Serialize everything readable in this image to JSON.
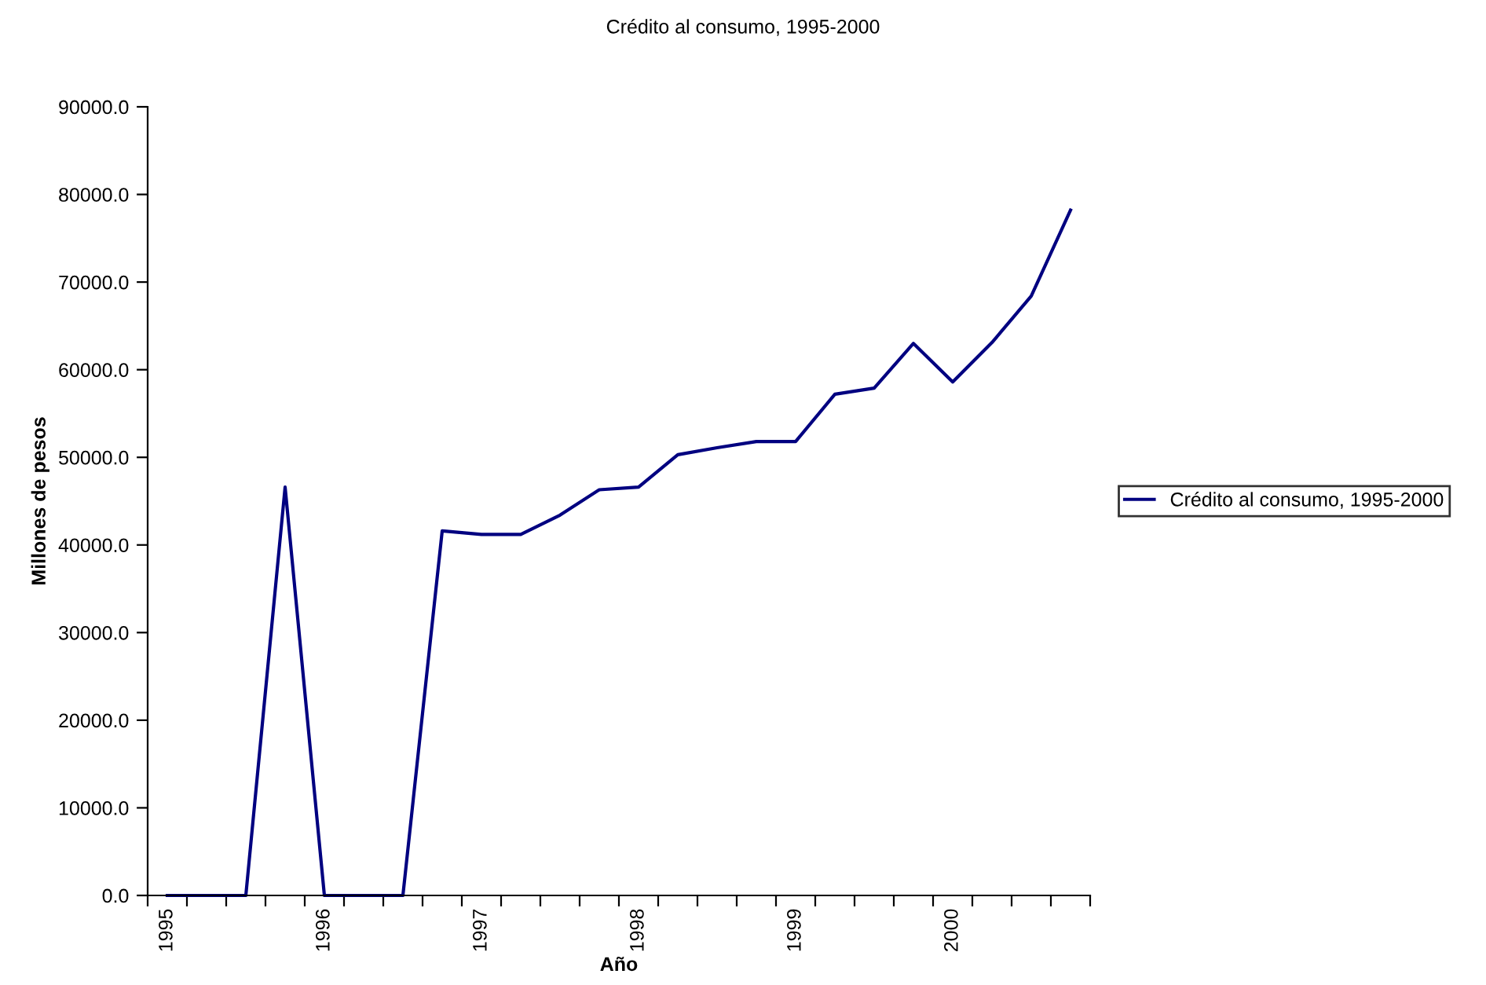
{
  "chart_data": {
    "type": "line",
    "title": "Crédito al consumo, 1995-2000",
    "xlabel": "Año",
    "ylabel": "Millones de pesos",
    "categories": [
      "1995",
      null,
      null,
      null,
      "1996",
      null,
      null,
      null,
      "1997",
      null,
      null,
      null,
      "1998",
      null,
      null,
      null,
      "1999",
      null,
      null,
      null,
      "2000",
      null,
      null,
      null
    ],
    "series": [
      {
        "name": "Crédito al consumo, 1995-2000",
        "color": "#000080",
        "values": [
          0,
          0,
          0,
          46600,
          0,
          0,
          0,
          41600,
          41200,
          41200,
          43400,
          46300,
          46600,
          50300,
          51100,
          51800,
          51800,
          57200,
          57900,
          63000,
          58600,
          63100,
          68400,
          78200
        ]
      }
    ],
    "ylim": [
      0,
      90000
    ],
    "yticks": [
      {
        "value": 0,
        "label": "0.0"
      },
      {
        "value": 10000,
        "label": "10000.0"
      },
      {
        "value": 20000,
        "label": "20000.0"
      },
      {
        "value": 30000,
        "label": "30000.0"
      },
      {
        "value": 40000,
        "label": "40000.0"
      },
      {
        "value": 50000,
        "label": "50000.0"
      },
      {
        "value": 60000,
        "label": "60000.0"
      },
      {
        "value": 70000,
        "label": "70000.0"
      },
      {
        "value": 80000,
        "label": "80000.0"
      },
      {
        "value": 90000,
        "label": "90000.0"
      }
    ],
    "grid": false,
    "legend": "right",
    "marker": "none",
    "line_style": "solid"
  }
}
